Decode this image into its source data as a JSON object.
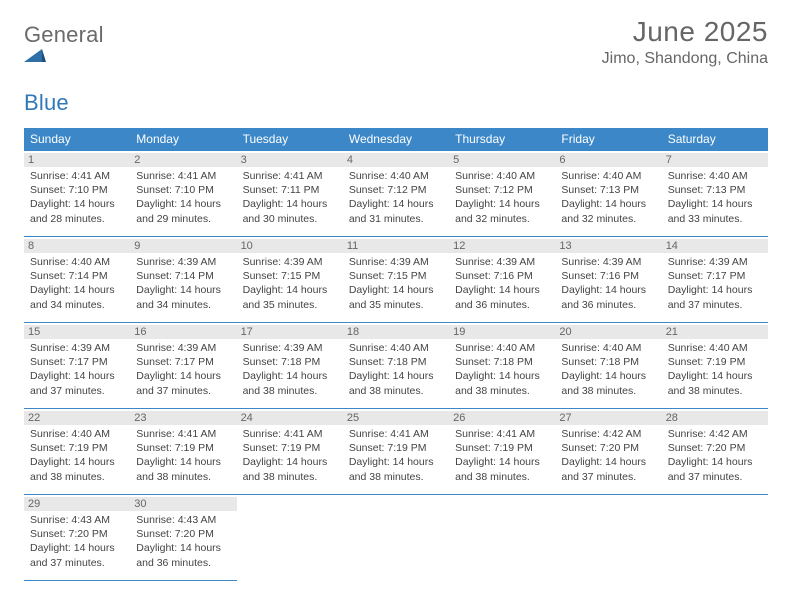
{
  "logo": {
    "general": "General",
    "blue": "Blue"
  },
  "title": "June 2025",
  "subtitle": "Jimo, Shandong, China",
  "colors": {
    "header_bg": "#3b87c8",
    "header_text": "#ffffff",
    "border": "#3b87c8",
    "daynum_bg": "#e8e8e8",
    "text": "#444444",
    "logo_gray": "#6a6a6a",
    "logo_blue": "#3178b9",
    "title_color": "#666666"
  },
  "fontsize": {
    "title": 28,
    "subtitle": 16,
    "weekday": 12,
    "daynum": 11,
    "body": 10.5
  },
  "weekdays": [
    "Sunday",
    "Monday",
    "Tuesday",
    "Wednesday",
    "Thursday",
    "Friday",
    "Saturday"
  ],
  "weeks": [
    [
      {
        "n": "1",
        "sr": "4:41 AM",
        "ss": "7:10 PM",
        "dl": "14 hours and 28 minutes."
      },
      {
        "n": "2",
        "sr": "4:41 AM",
        "ss": "7:10 PM",
        "dl": "14 hours and 29 minutes."
      },
      {
        "n": "3",
        "sr": "4:41 AM",
        "ss": "7:11 PM",
        "dl": "14 hours and 30 minutes."
      },
      {
        "n": "4",
        "sr": "4:40 AM",
        "ss": "7:12 PM",
        "dl": "14 hours and 31 minutes."
      },
      {
        "n": "5",
        "sr": "4:40 AM",
        "ss": "7:12 PM",
        "dl": "14 hours and 32 minutes."
      },
      {
        "n": "6",
        "sr": "4:40 AM",
        "ss": "7:13 PM",
        "dl": "14 hours and 32 minutes."
      },
      {
        "n": "7",
        "sr": "4:40 AM",
        "ss": "7:13 PM",
        "dl": "14 hours and 33 minutes."
      }
    ],
    [
      {
        "n": "8",
        "sr": "4:40 AM",
        "ss": "7:14 PM",
        "dl": "14 hours and 34 minutes."
      },
      {
        "n": "9",
        "sr": "4:39 AM",
        "ss": "7:14 PM",
        "dl": "14 hours and 34 minutes."
      },
      {
        "n": "10",
        "sr": "4:39 AM",
        "ss": "7:15 PM",
        "dl": "14 hours and 35 minutes."
      },
      {
        "n": "11",
        "sr": "4:39 AM",
        "ss": "7:15 PM",
        "dl": "14 hours and 35 minutes."
      },
      {
        "n": "12",
        "sr": "4:39 AM",
        "ss": "7:16 PM",
        "dl": "14 hours and 36 minutes."
      },
      {
        "n": "13",
        "sr": "4:39 AM",
        "ss": "7:16 PM",
        "dl": "14 hours and 36 minutes."
      },
      {
        "n": "14",
        "sr": "4:39 AM",
        "ss": "7:17 PM",
        "dl": "14 hours and 37 minutes."
      }
    ],
    [
      {
        "n": "15",
        "sr": "4:39 AM",
        "ss": "7:17 PM",
        "dl": "14 hours and 37 minutes."
      },
      {
        "n": "16",
        "sr": "4:39 AM",
        "ss": "7:17 PM",
        "dl": "14 hours and 37 minutes."
      },
      {
        "n": "17",
        "sr": "4:39 AM",
        "ss": "7:18 PM",
        "dl": "14 hours and 38 minutes."
      },
      {
        "n": "18",
        "sr": "4:40 AM",
        "ss": "7:18 PM",
        "dl": "14 hours and 38 minutes."
      },
      {
        "n": "19",
        "sr": "4:40 AM",
        "ss": "7:18 PM",
        "dl": "14 hours and 38 minutes."
      },
      {
        "n": "20",
        "sr": "4:40 AM",
        "ss": "7:18 PM",
        "dl": "14 hours and 38 minutes."
      },
      {
        "n": "21",
        "sr": "4:40 AM",
        "ss": "7:19 PM",
        "dl": "14 hours and 38 minutes."
      }
    ],
    [
      {
        "n": "22",
        "sr": "4:40 AM",
        "ss": "7:19 PM",
        "dl": "14 hours and 38 minutes."
      },
      {
        "n": "23",
        "sr": "4:41 AM",
        "ss": "7:19 PM",
        "dl": "14 hours and 38 minutes."
      },
      {
        "n": "24",
        "sr": "4:41 AM",
        "ss": "7:19 PM",
        "dl": "14 hours and 38 minutes."
      },
      {
        "n": "25",
        "sr": "4:41 AM",
        "ss": "7:19 PM",
        "dl": "14 hours and 38 minutes."
      },
      {
        "n": "26",
        "sr": "4:41 AM",
        "ss": "7:19 PM",
        "dl": "14 hours and 38 minutes."
      },
      {
        "n": "27",
        "sr": "4:42 AM",
        "ss": "7:20 PM",
        "dl": "14 hours and 37 minutes."
      },
      {
        "n": "28",
        "sr": "4:42 AM",
        "ss": "7:20 PM",
        "dl": "14 hours and 37 minutes."
      }
    ],
    [
      {
        "n": "29",
        "sr": "4:43 AM",
        "ss": "7:20 PM",
        "dl": "14 hours and 37 minutes."
      },
      {
        "n": "30",
        "sr": "4:43 AM",
        "ss": "7:20 PM",
        "dl": "14 hours and 36 minutes."
      },
      null,
      null,
      null,
      null,
      null
    ]
  ],
  "labels": {
    "sunrise": "Sunrise: ",
    "sunset": "Sunset: ",
    "daylight": "Daylight: "
  }
}
